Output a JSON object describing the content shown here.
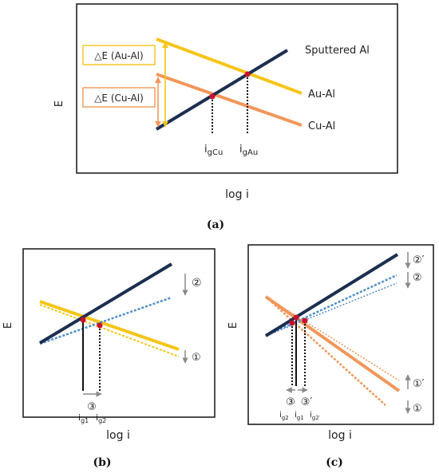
{
  "panel_a": {
    "caption": "(a)",
    "y_axis": "E",
    "x_axis": "log i",
    "line_labels": {
      "sputtered": "Sputtered Al",
      "au_al": "Au-Al",
      "cu_al": "Cu-Al"
    },
    "delta_labels": {
      "au": "△E (Au-Al)",
      "cu": "△E (Cu-Al)"
    },
    "current_labels": {
      "cu": "i",
      "cu_sub": "gCu",
      "au": "i",
      "au_sub": "gAu"
    }
  },
  "panel_b": {
    "caption": "(b)",
    "y_axis": "E",
    "x_axis": "log i",
    "markers": {
      "down_top": "②",
      "down_bottom": "①",
      "shift": "③"
    },
    "current_labels": {
      "g1": "i",
      "g1_sub": "g1",
      "g2": "i",
      "g2_sub": "g2"
    }
  },
  "panel_c": {
    "caption": "(c)",
    "y_axis": "E",
    "x_axis": "log i",
    "markers": {
      "top1": "②′",
      "top2": "②",
      "up": "①′",
      "down": "①",
      "shift_left": "③",
      "shift_right": "③′"
    },
    "current_labels": {
      "g2": "i",
      "g2_sub": "g2",
      "g1": "i",
      "g1_sub": "g1",
      "g2p": "i",
      "g2p_sub": "g2′"
    }
  },
  "colors": {
    "dark_navy": "#1c2f50",
    "gold": "#f5c518",
    "orange": "#f0975a",
    "blue_dotted": "#4f8fc9",
    "marker_red": "#c8102e",
    "gray_arrow": "#8a8a8a"
  }
}
